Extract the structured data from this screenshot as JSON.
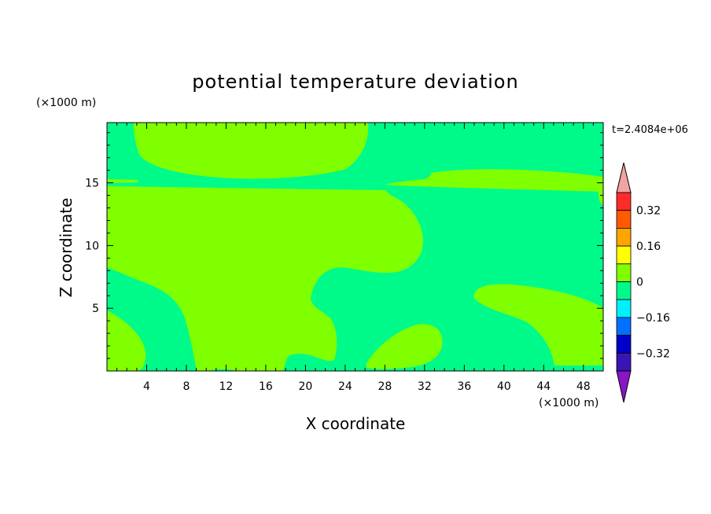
{
  "chart_data": {
    "type": "heatmap",
    "title": "potential temperature deviation",
    "xlabel": "X coordinate",
    "ylabel": "Z coordinate",
    "x_unit": "(×1000 m)",
    "y_unit": "(×1000 m)",
    "time_label": "t=2.4084e+06",
    "xlim": [
      0,
      50
    ],
    "ylim": [
      0,
      19.8
    ],
    "x_ticks": [
      4,
      8,
      12,
      16,
      20,
      24,
      28,
      32,
      36,
      40,
      44,
      48
    ],
    "y_ticks": [
      5,
      10,
      15
    ],
    "levels": [
      {
        "range": "above 0.40",
        "color": "#f4a3a3"
      },
      {
        "range": "0.32 to 0.40",
        "color": "#ff2a2a"
      },
      {
        "range": "0.24 to 0.32",
        "color": "#ff5a00"
      },
      {
        "range": "0.16 to 0.24",
        "color": "#ffa500"
      },
      {
        "range": "0.08 to 0.16",
        "color": "#ffff00"
      },
      {
        "range": "0 to 0.08",
        "color": "#80ff00"
      },
      {
        "range": "-0.08 to 0",
        "color": "#00fa8a"
      },
      {
        "range": "-0.16 to -0.08",
        "color": "#00f0ff"
      },
      {
        "range": "-0.24 to -0.16",
        "color": "#0070ff"
      },
      {
        "range": "-0.32 to -0.24",
        "color": "#0000c8"
      },
      {
        "range": "-0.40 to -0.32",
        "color": "#3a14b4"
      },
      {
        "range": "below -0.40",
        "color": "#8a14c8"
      }
    ],
    "colorbar_labels": [
      "0.32",
      "0.16",
      "0",
      "-0.16",
      "-0.32"
    ],
    "colorbar_label_text": [
      "0.32",
      "0.16",
      "0",
      "−0.16",
      "−0.32"
    ],
    "field_background": "-0.08 to 0",
    "positive_regions": "0 to 0.08"
  }
}
